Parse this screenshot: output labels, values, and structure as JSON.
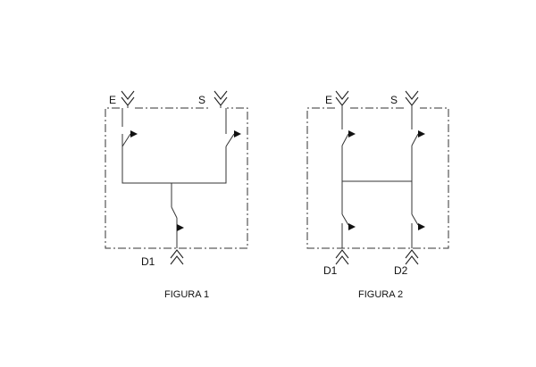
{
  "figures": [
    {
      "caption": "FIGURA 1",
      "labels": {
        "inlet": "E",
        "supply": "S",
        "outlet": "D1"
      }
    },
    {
      "caption": "FIGURA 2",
      "labels": {
        "inlet": "E",
        "supply": "S",
        "outlet_1": "D1",
        "outlet_2": "D2"
      }
    }
  ]
}
